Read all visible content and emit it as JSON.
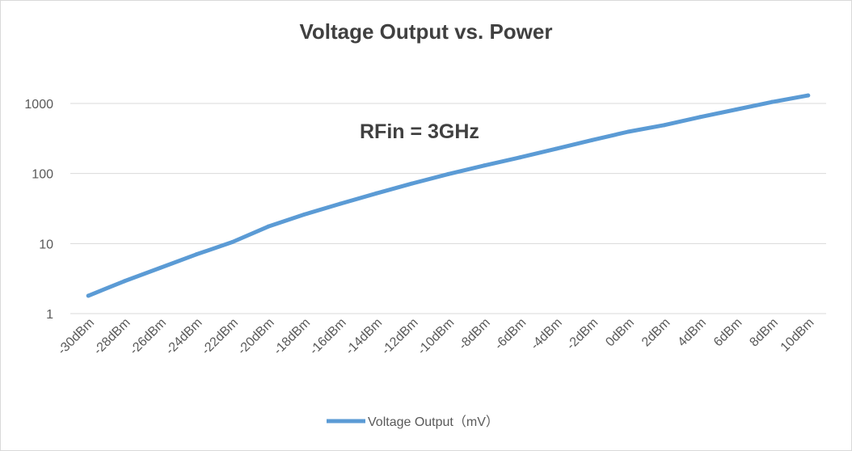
{
  "chart_data": {
    "type": "line",
    "title": "Voltage Output vs. Power",
    "categories": [
      "-30dBm",
      "-28dBm",
      "-26dBm",
      "-24dBm",
      "-22dBm",
      "-20dBm",
      "-18dBm",
      "-16dBm",
      "-14dBm",
      "-12dBm",
      "-10dBm",
      "-8dBm",
      "-6dBm",
      "-4dBm",
      "-2dBm",
      "0dBm",
      "2dBm",
      "4dBm",
      "6dBm",
      "8dBm",
      "10dBm"
    ],
    "series": [
      {
        "name": "Voltage Output（mV）",
        "color": "#5b9bd5",
        "values": [
          1.8,
          2.9,
          4.5,
          7.0,
          10.5,
          17.5,
          26,
          37,
          52,
          72,
          98,
          130,
          170,
          225,
          300,
          395,
          490,
          640,
          820,
          1050,
          1300
        ]
      }
    ],
    "y_scale": "log",
    "ylim": [
      1,
      1000
    ],
    "y_ticks": [
      "1",
      "10",
      "100",
      "1000"
    ],
    "grid": "horizontal",
    "legend_position": "bottom",
    "annotation": "RFin = 3GHz",
    "xlabel": "",
    "ylabel": ""
  }
}
